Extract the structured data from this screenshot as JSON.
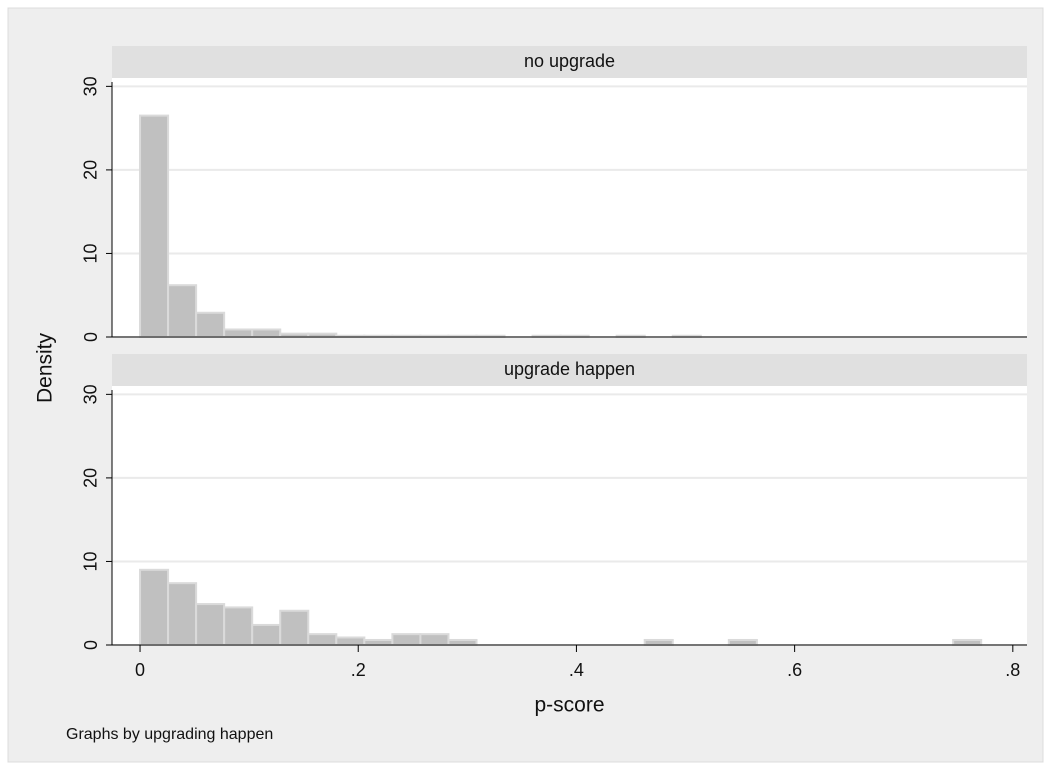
{
  "chart_data": [
    {
      "type": "histogram",
      "title": "no upgrade",
      "ylabel": "Density",
      "bins": [
        0,
        0.0257,
        0.0514,
        0.0771,
        0.1028,
        0.1285,
        0.1542,
        0.1799,
        0.2056,
        0.2313,
        0.257,
        0.2827,
        0.3084,
        0.3341,
        0.3598,
        0.3855,
        0.4112,
        0.4369,
        0.4626,
        0.4883,
        0.514,
        0.5397,
        0.5654,
        0.5911,
        0.6168,
        0.6425,
        0.6682,
        0.6939,
        0.7196,
        0.7453,
        0.771
      ],
      "values": [
        26.5,
        6.2,
        2.9,
        0.9,
        0.9,
        0.4,
        0.4,
        0.15,
        0.15,
        0.15,
        0.15,
        0.15,
        0.15,
        0,
        0.15,
        0.15,
        0,
        0.15,
        0,
        0.15,
        0,
        0,
        0,
        0,
        0,
        0,
        0,
        0,
        0,
        0
      ],
      "color": "#c0c0c0",
      "xlim": [
        -0.0257,
        0.813
      ],
      "ylim": [
        0,
        31
      ],
      "yticks": [
        0,
        10,
        20,
        30
      ],
      "grid": true
    },
    {
      "type": "histogram",
      "title": "upgrade happen",
      "xlabel": "p-score",
      "note": "Graphs by upgrading happen",
      "bins": [
        0,
        0.0257,
        0.0514,
        0.0771,
        0.1028,
        0.1285,
        0.1542,
        0.1799,
        0.2056,
        0.2313,
        0.257,
        0.2827,
        0.3084,
        0.3341,
        0.3598,
        0.3855,
        0.4112,
        0.4369,
        0.4626,
        0.4883,
        0.514,
        0.5397,
        0.5654,
        0.5911,
        0.6168,
        0.6425,
        0.6682,
        0.6939,
        0.7196,
        0.7453,
        0.771
      ],
      "values": [
        9.0,
        7.4,
        4.9,
        4.5,
        2.4,
        4.1,
        1.3,
        0.9,
        0.6,
        1.3,
        1.3,
        0.6,
        0,
        0,
        0,
        0,
        0,
        0,
        0.6,
        0,
        0,
        0.6,
        0,
        0,
        0,
        0,
        0,
        0,
        0,
        0.6
      ],
      "color": "#c0c0c0",
      "xlim": [
        -0.0257,
        0.813
      ],
      "ylim": [
        0,
        31
      ],
      "xticks": [
        0,
        {
          "value": 0.2,
          "label": ".2"
        },
        {
          "value": 0.4,
          "label": ".4"
        },
        {
          "value": 0.6,
          "label": ".6"
        },
        {
          "value": 0.8,
          "label": ".8"
        }
      ],
      "yticks": [
        0,
        10,
        20,
        30
      ],
      "grid": true
    }
  ]
}
